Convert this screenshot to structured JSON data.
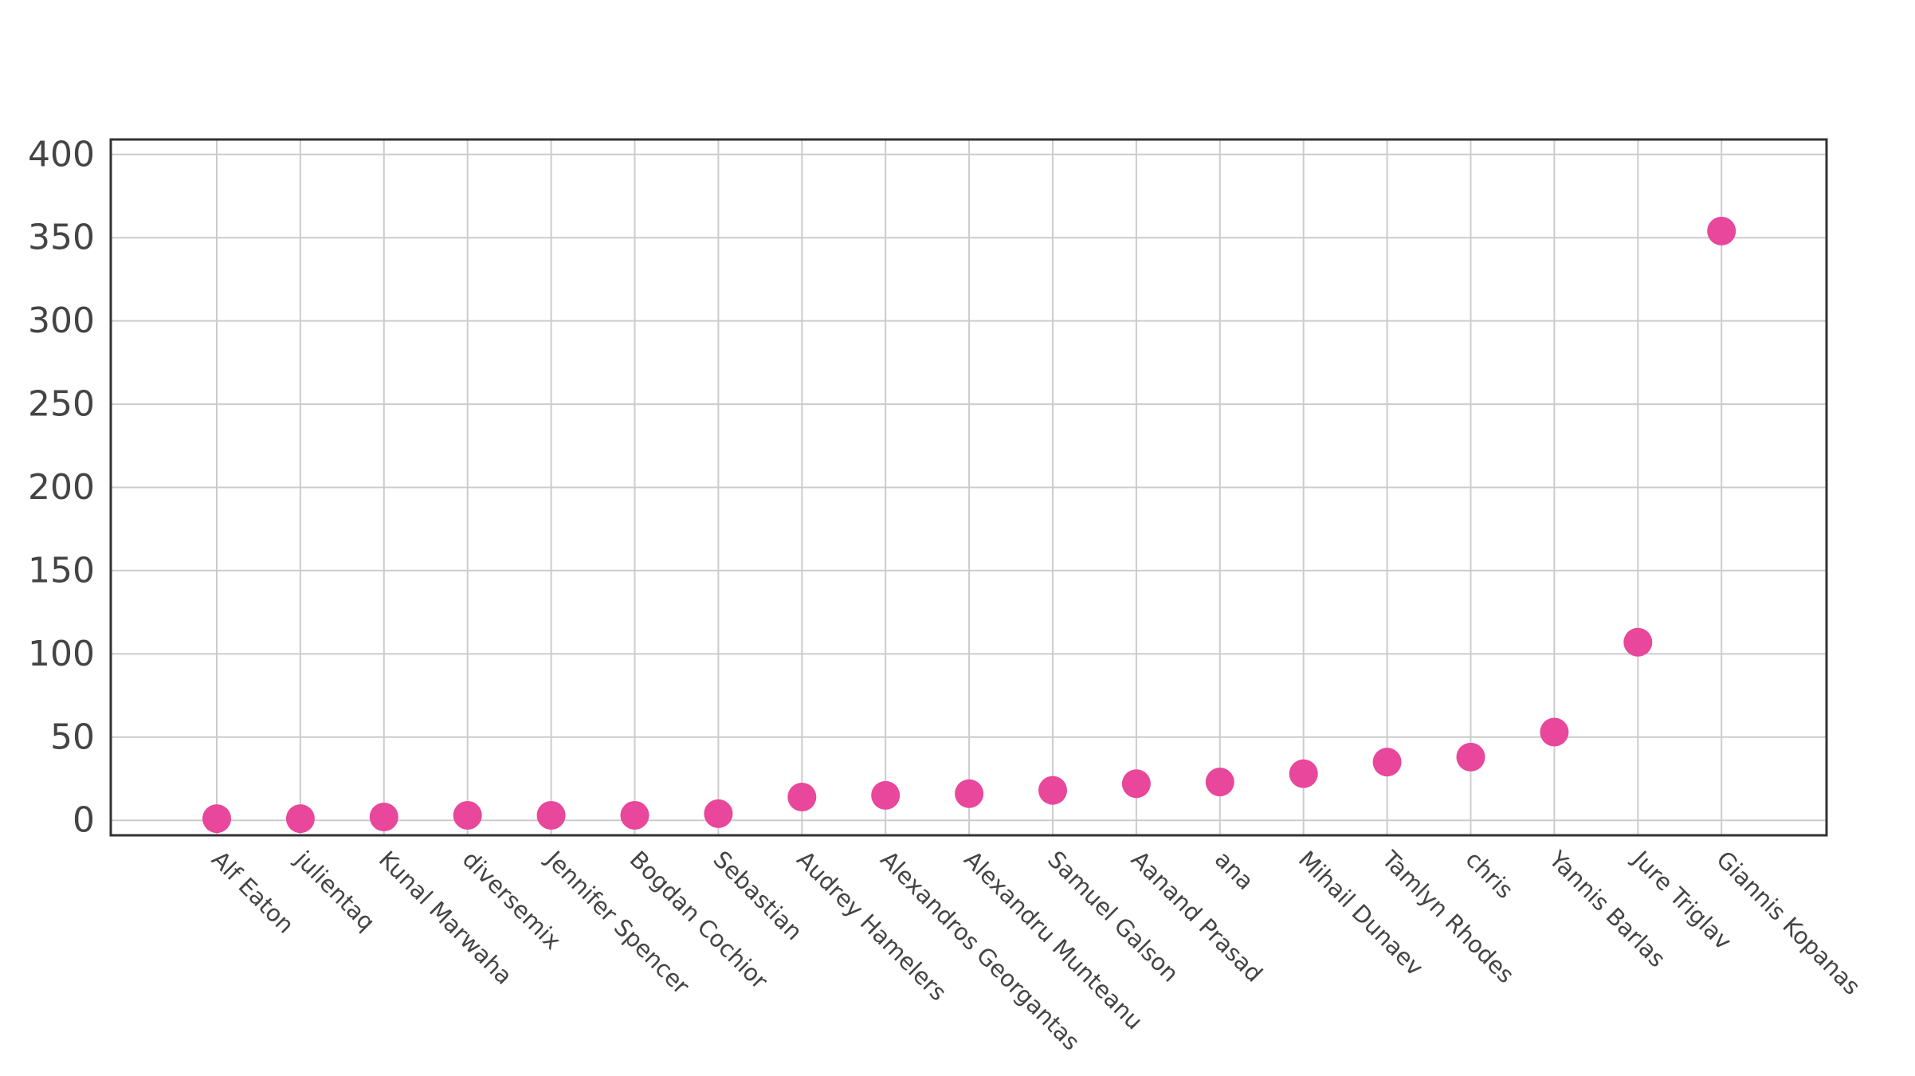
{
  "chart_data": {
    "type": "scatter",
    "title": "",
    "xlabel": "",
    "ylabel": "",
    "categories": [
      "Alf Eaton",
      "julientaq",
      "Kunal Marwaha",
      "diversemix",
      "Jennifer Spencer",
      "Bogdan Cochior",
      "Sebastian",
      "Audrey Hamelers",
      "Alexandros Georgantas",
      "Alexandru Munteanu",
      "Samuel Galson",
      "Aanand Prasad",
      "ana",
      "Mihail Dunaev",
      "Tamlyn Rhodes",
      "chris",
      "Yannis Barlas",
      "Jure Triglav",
      "Giannis Kopanas"
    ],
    "series": [
      {
        "values": [
          1,
          1,
          2,
          3,
          3,
          3,
          4,
          14,
          15,
          16,
          18,
          22,
          23,
          28,
          35,
          38,
          53,
          107,
          354
        ]
      }
    ],
    "ylim": [
      -9,
      409
    ],
    "yticks": [
      0,
      50,
      100,
      150,
      200,
      250,
      300,
      350,
      400
    ],
    "grid": true,
    "legend": "none",
    "marker_color": "#e8479b",
    "grid_color": "#cccccc",
    "frame_color": "#333333",
    "text_color": "#444444"
  }
}
